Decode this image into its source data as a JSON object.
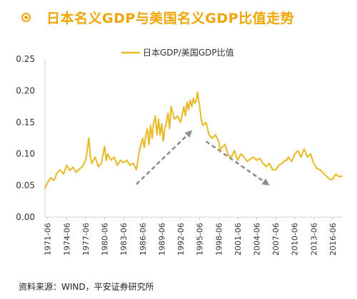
{
  "header": {
    "title": "日本名义GDP与美国名义GDP比值走势",
    "icon": "target-dot-icon"
  },
  "footer": {
    "source": "资料来源：WIND，平安证券研究所"
  },
  "colors": {
    "series": "#e8b923",
    "title": "#f0a500",
    "arrow": "#8c8c8c"
  },
  "chart_data": {
    "type": "line",
    "title": "",
    "xlabel": "",
    "ylabel": "",
    "ylim": [
      0,
      0.25
    ],
    "yticks": [
      "0.00",
      "0.05",
      "0.10",
      "0.15",
      "0.20",
      "0.25"
    ],
    "xticks": [
      "1971-06",
      "1974-06",
      "1977-06",
      "1980-06",
      "1983-06",
      "1986-06",
      "1989-06",
      "1992-06",
      "1995-06",
      "1998-06",
      "2001-06",
      "2004-06",
      "2007-06",
      "2010-06",
      "2013-06",
      "2016-06"
    ],
    "xlim": [
      "1971-01",
      "2018-01"
    ],
    "grid": false,
    "legend": "top",
    "annotations": [
      {
        "type": "arrow",
        "from": [
          "1985-06",
          0.052
        ],
        "to": [
          "1994-01",
          0.135
        ]
      },
      {
        "type": "arrow",
        "from": [
          "1996-06",
          0.12
        ],
        "to": [
          "2006-03",
          0.052
        ]
      }
    ],
    "series": [
      {
        "name": "日本GDP/美国GDP比值",
        "x": [
          "1971-01",
          "1971-06",
          "1971-12",
          "1972-06",
          "1972-12",
          "1973-06",
          "1973-12",
          "1974-06",
          "1974-12",
          "1975-06",
          "1975-12",
          "1976-06",
          "1976-12",
          "1977-06",
          "1977-09",
          "1977-12",
          "1978-03",
          "1978-06",
          "1978-09",
          "1978-12",
          "1979-06",
          "1979-12",
          "1980-06",
          "1980-09",
          "1980-12",
          "1981-06",
          "1981-12",
          "1982-06",
          "1982-12",
          "1983-06",
          "1983-12",
          "1984-06",
          "1984-12",
          "1985-06",
          "1985-09",
          "1985-12",
          "1986-03",
          "1986-06",
          "1986-09",
          "1986-12",
          "1987-03",
          "1987-06",
          "1987-09",
          "1987-12",
          "1988-03",
          "1988-06",
          "1988-09",
          "1988-12",
          "1989-03",
          "1989-06",
          "1989-09",
          "1989-12",
          "1990-03",
          "1990-06",
          "1990-09",
          "1990-12",
          "1991-06",
          "1991-12",
          "1992-06",
          "1992-12",
          "1993-03",
          "1993-06",
          "1993-09",
          "1993-12",
          "1994-03",
          "1994-06",
          "1994-09",
          "1994-12",
          "1995-02",
          "1995-04",
          "1995-06",
          "1995-09",
          "1995-12",
          "1996-06",
          "1996-12",
          "1997-06",
          "1997-12",
          "1998-06",
          "1998-09",
          "1998-12",
          "1999-06",
          "1999-12",
          "2000-06",
          "2000-12",
          "2001-06",
          "2001-12",
          "2002-06",
          "2002-12",
          "2003-06",
          "2003-12",
          "2004-06",
          "2004-12",
          "2005-06",
          "2005-12",
          "2006-06",
          "2006-12",
          "2007-06",
          "2007-12",
          "2008-06",
          "2008-12",
          "2009-03",
          "2009-06",
          "2009-12",
          "2010-06",
          "2010-12",
          "2011-06",
          "2011-12",
          "2012-06",
          "2012-12",
          "2013-06",
          "2013-12",
          "2014-06",
          "2014-12",
          "2015-06",
          "2015-12",
          "2016-06",
          "2016-09",
          "2016-12",
          "2017-06",
          "2017-12"
        ],
        "values": [
          0.045,
          0.055,
          0.062,
          0.058,
          0.07,
          0.075,
          0.068,
          0.082,
          0.074,
          0.079,
          0.071,
          0.076,
          0.08,
          0.09,
          0.105,
          0.125,
          0.095,
          0.085,
          0.09,
          0.095,
          0.08,
          0.085,
          0.112,
          0.09,
          0.1,
          0.09,
          0.095,
          0.082,
          0.09,
          0.086,
          0.09,
          0.082,
          0.085,
          0.075,
          0.09,
          0.105,
          0.115,
          0.125,
          0.11,
          0.13,
          0.14,
          0.115,
          0.145,
          0.125,
          0.15,
          0.16,
          0.13,
          0.155,
          0.13,
          0.148,
          0.12,
          0.14,
          0.15,
          0.165,
          0.14,
          0.175,
          0.155,
          0.16,
          0.15,
          0.175,
          0.16,
          0.182,
          0.17,
          0.185,
          0.175,
          0.188,
          0.18,
          0.186,
          0.198,
          0.185,
          0.175,
          0.155,
          0.145,
          0.15,
          0.13,
          0.125,
          0.13,
          0.12,
          0.105,
          0.11,
          0.115,
          0.098,
          0.095,
          0.105,
          0.09,
          0.1,
          0.095,
          0.088,
          0.092,
          0.095,
          0.09,
          0.093,
          0.085,
          0.08,
          0.085,
          0.075,
          0.075,
          0.082,
          0.085,
          0.09,
          0.09,
          0.095,
          0.088,
          0.1,
          0.105,
          0.095,
          0.108,
          0.095,
          0.1,
          0.085,
          0.077,
          0.075,
          0.07,
          0.065,
          0.06,
          0.06,
          0.065,
          0.068,
          0.064,
          0.065
        ]
      }
    ]
  }
}
